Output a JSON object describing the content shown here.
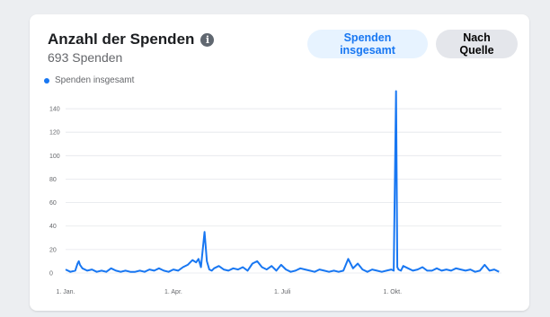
{
  "card": {
    "title": "Anzahl der Spenden",
    "subtitle": "693 Spenden",
    "info_icon": "info-icon",
    "buttons": {
      "total": "Spenden insgesamt",
      "by_source": "Nach Quelle"
    },
    "legend": "Spenden insgesamt"
  },
  "colors": {
    "accent": "#1877f2",
    "active_button_bg": "#e7f3ff",
    "inactive_button_bg": "#e4e6eb",
    "grid": "#e4e6eb"
  },
  "chart_data": {
    "type": "line",
    "title": "",
    "xlabel": "",
    "ylabel": "",
    "ylim": [
      0,
      150
    ],
    "yticks": [
      0,
      20,
      40,
      60,
      80,
      100,
      120,
      140
    ],
    "xticks": [
      "1. Jan.",
      "1. Apr.",
      "1. Juli",
      "1. Okt."
    ],
    "grid": true,
    "legend_position": "top-left",
    "series": [
      {
        "name": "Spenden insgesamt",
        "x": [
          "Jan 1",
          "Jan 5",
          "Jan 9",
          "Jan 11",
          "Jan 12",
          "Jan 13",
          "Jan 15",
          "Jan 19",
          "Jan 23",
          "Jan 27",
          "Jan 31",
          "Feb 4",
          "Feb 8",
          "Feb 12",
          "Feb 16",
          "Feb 20",
          "Feb 24",
          "Feb 28",
          "Mar 4",
          "Mar 8",
          "Mar 12",
          "Mar 16",
          "Mar 20",
          "Mar 24",
          "Mar 28",
          "Apr 1",
          "Apr 5",
          "Apr 9",
          "Apr 13",
          "Apr 17",
          "Apr 20",
          "Apr 22",
          "Apr 24",
          "Apr 27",
          "Apr 29",
          "May 1",
          "May 3",
          "May 5",
          "May 9",
          "May 13",
          "May 17",
          "May 21",
          "May 25",
          "May 29",
          "Jun 2",
          "Jun 6",
          "Jun 10",
          "Jun 14",
          "Jun 18",
          "Jun 22",
          "Jun 26",
          "Jun 30",
          "Jul 4",
          "Jul 8",
          "Jul 12",
          "Jul 16",
          "Jul 20",
          "Jul 24",
          "Jul 28",
          "Aug 1",
          "Aug 5",
          "Aug 9",
          "Aug 13",
          "Aug 17",
          "Aug 21",
          "Aug 25",
          "Aug 29",
          "Sep 2",
          "Sep 6",
          "Sep 10",
          "Sep 14",
          "Sep 18",
          "Sep 22",
          "Sep 26",
          "Sep 30",
          "Oct 2",
          "Oct 4",
          "Oct 5",
          "Oct 6",
          "Oct 8",
          "Oct 10",
          "Oct 14",
          "Oct 18",
          "Oct 22",
          "Oct 26",
          "Oct 30",
          "Nov 3",
          "Nov 7",
          "Nov 11",
          "Nov 15",
          "Nov 19",
          "Nov 23",
          "Nov 27",
          "Dec 1",
          "Dec 5",
          "Dec 9",
          "Dec 13",
          "Dec 17",
          "Dec 21",
          "Dec 25",
          "Dec 29"
        ],
        "values": [
          3,
          1,
          2,
          8,
          10,
          7,
          4,
          2,
          3,
          1,
          2,
          1,
          4,
          2,
          1,
          2,
          1,
          1,
          2,
          1,
          3,
          2,
          4,
          2,
          1,
          3,
          2,
          5,
          7,
          11,
          9,
          12,
          5,
          35,
          10,
          3,
          2,
          4,
          6,
          3,
          2,
          4,
          3,
          5,
          2,
          8,
          10,
          5,
          3,
          6,
          2,
          7,
          3,
          1,
          2,
          4,
          3,
          2,
          1,
          3,
          2,
          1,
          2,
          1,
          2,
          12,
          4,
          8,
          3,
          1,
          3,
          2,
          1,
          2,
          3,
          2,
          155,
          5,
          3,
          2,
          6,
          4,
          2,
          3,
          5,
          2,
          2,
          4,
          2,
          3,
          2,
          4,
          3,
          2,
          3,
          1,
          2,
          7,
          2,
          3,
          1
        ]
      }
    ]
  }
}
